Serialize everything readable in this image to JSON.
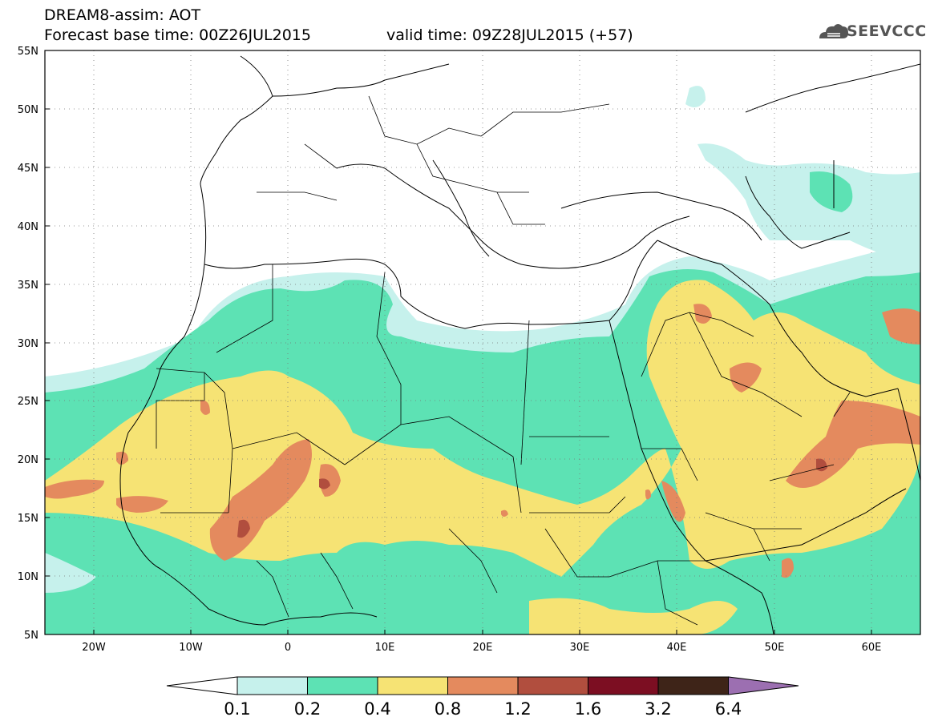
{
  "header": {
    "title_line1": "DREAM8-assim: AOT",
    "title_line2": "Forecast base time: 00Z26JUL2015",
    "valid_time": "valid time: 09Z28JUL2015 (+57)",
    "logo_text": "SEEVCCC"
  },
  "map": {
    "lat_labels": [
      "55N",
      "50N",
      "45N",
      "40N",
      "35N",
      "30N",
      "25N",
      "20N",
      "15N",
      "10N",
      "5N"
    ],
    "lon_labels": [
      "20W",
      "10W",
      "0",
      "10E",
      "20E",
      "30E",
      "40E",
      "50E",
      "60E"
    ],
    "lat_range": [
      5,
      55
    ],
    "lon_range": [
      -25,
      65
    ],
    "grid": "dotted"
  },
  "legend": {
    "labels": [
      "0.1",
      "0.2",
      "0.4",
      "0.8",
      "1.2",
      "1.6",
      "3.2",
      "6.4"
    ],
    "colors": {
      "below": "#ffffff",
      "c1": "#c6f1ec",
      "c2": "#5de2b4",
      "c3": "#f6e374",
      "c4": "#e48a5e",
      "c5": "#b14e3e",
      "c6": "#7c0e22",
      "c7": "#3e2418",
      "above": "#9c6fb1"
    }
  }
}
